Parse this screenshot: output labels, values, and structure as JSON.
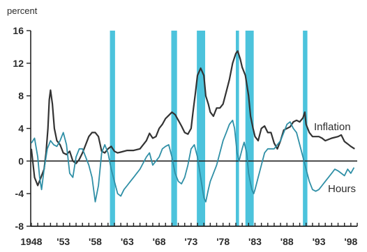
{
  "chart_data": {
    "type": "line",
    "y_unit_label": "percent",
    "ylim": [
      -8,
      16
    ],
    "y_ticks": [
      16,
      12,
      8,
      4,
      0,
      -4,
      -8
    ],
    "xlim": [
      1947.9,
      1999.0
    ],
    "x_ticks": [
      {
        "x": 1948,
        "label": "1948"
      },
      {
        "x": 1953,
        "label": "'53"
      },
      {
        "x": 1958,
        "label": "'58"
      },
      {
        "x": 1963,
        "label": "'63"
      },
      {
        "x": 1968,
        "label": "'68"
      },
      {
        "x": 1973,
        "label": "'73"
      },
      {
        "x": 1978,
        "label": "'78"
      },
      {
        "x": 1983,
        "label": "'83"
      },
      {
        "x": 1988,
        "label": "'88"
      },
      {
        "x": 1993,
        "label": "'93"
      },
      {
        "x": 1998,
        "label": "'98"
      }
    ],
    "shaded_periods": [
      [
        1960.3,
        1961.1
      ],
      [
        1969.9,
        1970.8
      ],
      [
        1973.9,
        1975.2
      ],
      [
        1980.0,
        1980.5
      ],
      [
        1981.5,
        1982.8
      ],
      [
        1990.5,
        1991.2
      ]
    ],
    "series": [
      {
        "name": "Inflation",
        "color": "#333333",
        "points": [
          [
            1948.0,
            1.5
          ],
          [
            1948.5,
            -2.0
          ],
          [
            1949.0,
            -3.0
          ],
          [
            1949.5,
            -2.0
          ],
          [
            1950.0,
            -1.0
          ],
          [
            1950.3,
            1.0
          ],
          [
            1950.6,
            4.0
          ],
          [
            1950.8,
            7.5
          ],
          [
            1951.0,
            8.7
          ],
          [
            1951.3,
            7.0
          ],
          [
            1951.6,
            4.0
          ],
          [
            1952.0,
            2.5
          ],
          [
            1952.5,
            2.0
          ],
          [
            1953.0,
            1.0
          ],
          [
            1953.5,
            0.8
          ],
          [
            1954.0,
            1.2
          ],
          [
            1954.5,
            0.0
          ],
          [
            1955.0,
            -0.3
          ],
          [
            1955.5,
            0.2
          ],
          [
            1956.0,
            1.0
          ],
          [
            1956.5,
            2.0
          ],
          [
            1957.0,
            3.0
          ],
          [
            1957.5,
            3.5
          ],
          [
            1958.0,
            3.5
          ],
          [
            1958.5,
            3.0
          ],
          [
            1959.0,
            1.2
          ],
          [
            1959.5,
            1.0
          ],
          [
            1960.0,
            1.5
          ],
          [
            1960.5,
            1.8
          ],
          [
            1961.0,
            1.2
          ],
          [
            1961.5,
            1.0
          ],
          [
            1962.0,
            1.1
          ],
          [
            1963.0,
            1.3
          ],
          [
            1964.0,
            1.3
          ],
          [
            1965.0,
            1.5
          ],
          [
            1966.0,
            2.5
          ],
          [
            1966.5,
            3.4
          ],
          [
            1967.0,
            2.8
          ],
          [
            1967.5,
            3.0
          ],
          [
            1968.0,
            4.0
          ],
          [
            1968.5,
            4.5
          ],
          [
            1969.0,
            5.2
          ],
          [
            1969.5,
            5.6
          ],
          [
            1970.0,
            6.0
          ],
          [
            1970.5,
            5.7
          ],
          [
            1971.0,
            5.0
          ],
          [
            1971.5,
            4.3
          ],
          [
            1972.0,
            3.5
          ],
          [
            1972.5,
            3.3
          ],
          [
            1973.0,
            4.0
          ],
          [
            1973.3,
            6.0
          ],
          [
            1973.7,
            8.5
          ],
          [
            1974.0,
            10.5
          ],
          [
            1974.5,
            11.4
          ],
          [
            1975.0,
            10.5
          ],
          [
            1975.3,
            8.0
          ],
          [
            1975.7,
            7.0
          ],
          [
            1976.0,
            6.0
          ],
          [
            1976.5,
            5.5
          ],
          [
            1977.0,
            6.5
          ],
          [
            1977.5,
            6.5
          ],
          [
            1978.0,
            7.0
          ],
          [
            1978.5,
            8.5
          ],
          [
            1979.0,
            10.0
          ],
          [
            1979.5,
            12.0
          ],
          [
            1980.0,
            13.2
          ],
          [
            1980.3,
            13.5
          ],
          [
            1980.7,
            12.5
          ],
          [
            1981.0,
            11.5
          ],
          [
            1981.5,
            10.5
          ],
          [
            1982.0,
            8.0
          ],
          [
            1982.3,
            5.5
          ],
          [
            1982.7,
            4.0
          ],
          [
            1983.0,
            3.0
          ],
          [
            1983.5,
            2.5
          ],
          [
            1984.0,
            4.0
          ],
          [
            1984.5,
            4.3
          ],
          [
            1985.0,
            3.5
          ],
          [
            1985.5,
            3.5
          ],
          [
            1986.0,
            2.2
          ],
          [
            1986.5,
            1.5
          ],
          [
            1987.0,
            2.5
          ],
          [
            1987.5,
            3.8
          ],
          [
            1988.0,
            4.0
          ],
          [
            1988.5,
            4.2
          ],
          [
            1989.0,
            4.8
          ],
          [
            1989.5,
            5.0
          ],
          [
            1990.0,
            4.8
          ],
          [
            1990.5,
            5.3
          ],
          [
            1990.8,
            6.0
          ],
          [
            1991.0,
            4.5
          ],
          [
            1991.5,
            3.5
          ],
          [
            1992.0,
            3.0
          ],
          [
            1993.0,
            3.0
          ],
          [
            1993.5,
            2.8
          ],
          [
            1994.0,
            2.5
          ],
          [
            1995.0,
            2.8
          ],
          [
            1996.0,
            3.0
          ],
          [
            1996.5,
            3.2
          ],
          [
            1997.0,
            2.4
          ],
          [
            1997.5,
            2.1
          ],
          [
            1998.0,
            1.8
          ],
          [
            1998.6,
            1.5
          ]
        ]
      },
      {
        "name": "Hours",
        "color": "#2f8fa6",
        "points": [
          [
            1948.0,
            2.2
          ],
          [
            1948.5,
            2.8
          ],
          [
            1949.0,
            0.5
          ],
          [
            1949.3,
            -2.0
          ],
          [
            1949.6,
            -3.5
          ],
          [
            1950.0,
            -1.0
          ],
          [
            1950.5,
            1.5
          ],
          [
            1951.0,
            2.5
          ],
          [
            1951.5,
            2.0
          ],
          [
            1952.0,
            1.8
          ],
          [
            1952.5,
            2.5
          ],
          [
            1953.0,
            3.5
          ],
          [
            1953.5,
            2.0
          ],
          [
            1954.0,
            -1.5
          ],
          [
            1954.5,
            -2.0
          ],
          [
            1955.0,
            0.5
          ],
          [
            1955.5,
            1.5
          ],
          [
            1956.0,
            1.5
          ],
          [
            1956.5,
            0.5
          ],
          [
            1957.0,
            -0.5
          ],
          [
            1957.5,
            -2.0
          ],
          [
            1958.0,
            -5.0
          ],
          [
            1958.5,
            -3.0
          ],
          [
            1959.0,
            1.0
          ],
          [
            1959.5,
            2.0
          ],
          [
            1960.0,
            1.0
          ],
          [
            1960.5,
            -1.0
          ],
          [
            1961.0,
            -2.5
          ],
          [
            1961.5,
            -4.0
          ],
          [
            1962.0,
            -4.3
          ],
          [
            1962.5,
            -3.5
          ],
          [
            1963.0,
            -3.0
          ],
          [
            1963.5,
            -2.5
          ],
          [
            1964.0,
            -2.0
          ],
          [
            1964.5,
            -1.5
          ],
          [
            1965.0,
            -1.0
          ],
          [
            1966.0,
            0.5
          ],
          [
            1966.5,
            1.0
          ],
          [
            1967.0,
            -0.5
          ],
          [
            1967.5,
            0.0
          ],
          [
            1968.0,
            0.5
          ],
          [
            1968.5,
            1.5
          ],
          [
            1969.0,
            1.8
          ],
          [
            1969.5,
            2.0
          ],
          [
            1970.0,
            0.5
          ],
          [
            1970.5,
            -1.5
          ],
          [
            1971.0,
            -2.5
          ],
          [
            1971.5,
            -2.8
          ],
          [
            1972.0,
            -2.0
          ],
          [
            1972.5,
            -0.5
          ],
          [
            1973.0,
            1.5
          ],
          [
            1973.5,
            2.0
          ],
          [
            1974.0,
            0.5
          ],
          [
            1974.5,
            -2.0
          ],
          [
            1975.0,
            -4.5
          ],
          [
            1975.3,
            -5.0
          ],
          [
            1975.7,
            -3.5
          ],
          [
            1976.0,
            -2.5
          ],
          [
            1977.0,
            -0.5
          ],
          [
            1977.5,
            1.0
          ],
          [
            1978.0,
            2.5
          ],
          [
            1978.5,
            3.5
          ],
          [
            1979.0,
            4.5
          ],
          [
            1979.5,
            5.0
          ],
          [
            1979.8,
            4.0
          ],
          [
            1980.2,
            1.0
          ],
          [
            1980.5,
            0.0
          ],
          [
            1981.0,
            1.5
          ],
          [
            1981.3,
            2.3
          ],
          [
            1981.7,
            1.0
          ],
          [
            1982.0,
            -1.5
          ],
          [
            1982.5,
            -3.5
          ],
          [
            1982.8,
            -4.0
          ],
          [
            1983.0,
            -3.5
          ],
          [
            1983.5,
            -2.0
          ],
          [
            1984.0,
            -0.5
          ],
          [
            1984.5,
            1.0
          ],
          [
            1985.0,
            1.5
          ],
          [
            1986.0,
            1.5
          ],
          [
            1987.0,
            2.5
          ],
          [
            1987.5,
            3.5
          ],
          [
            1988.0,
            4.5
          ],
          [
            1988.5,
            4.8
          ],
          [
            1989.0,
            4.0
          ],
          [
            1989.5,
            3.5
          ],
          [
            1990.0,
            2.0
          ],
          [
            1990.5,
            0.5
          ],
          [
            1991.0,
            -1.0
          ],
          [
            1991.5,
            -2.5
          ],
          [
            1992.0,
            -3.5
          ],
          [
            1992.5,
            -3.7
          ],
          [
            1993.0,
            -3.5
          ],
          [
            1993.5,
            -3.0
          ],
          [
            1994.0,
            -2.5
          ],
          [
            1995.0,
            -1.5
          ],
          [
            1995.5,
            -1.0
          ],
          [
            1996.0,
            -1.2
          ],
          [
            1996.5,
            -1.5
          ],
          [
            1997.0,
            -1.8
          ],
          [
            1997.5,
            -1.0
          ],
          [
            1998.0,
            -1.5
          ],
          [
            1998.5,
            -0.8
          ]
        ]
      }
    ]
  }
}
